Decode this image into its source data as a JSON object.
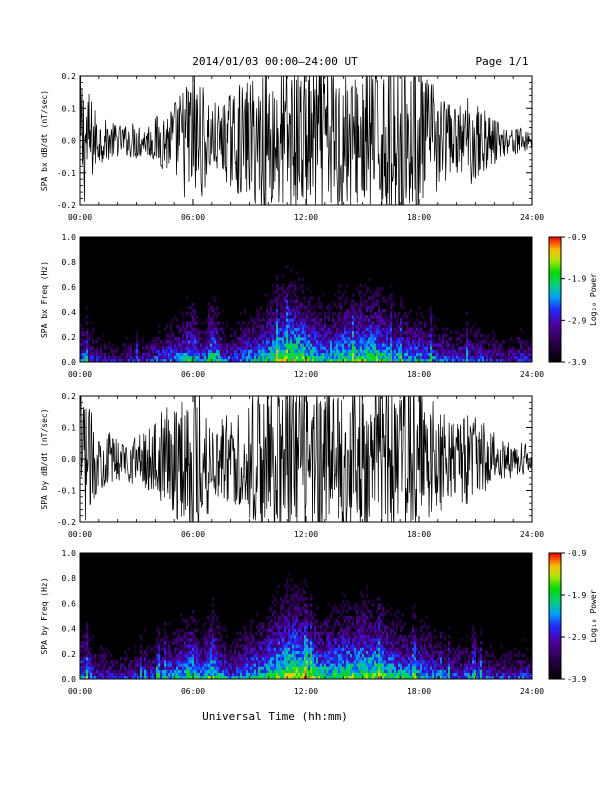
{
  "header": {
    "title": "2014/01/03  00:00–24:00 UT",
    "page": "Page 1/1"
  },
  "footer": {
    "xlabel": "Universal Time (hh:mm)"
  },
  "chart_data": [
    {
      "type": "line",
      "name": "bx-waveform",
      "ylabel": "SPA bx dB/dt (nT/sec)",
      "xlim": [
        0,
        24
      ],
      "ylim": [
        -0.2,
        0.2
      ],
      "xticks": [
        "00:00",
        "06:00",
        "12:00",
        "18:00",
        "24:00"
      ],
      "yticks": [
        "-0.2",
        "-0.1",
        "0.0",
        "0.1",
        "0.2"
      ],
      "x": [
        0,
        0.5,
        1,
        1.5,
        2,
        2.5,
        3,
        3.5,
        4,
        4.5,
        5,
        5.5,
        6,
        6.5,
        7,
        7.5,
        8,
        8.5,
        9,
        9.5,
        10,
        10.5,
        11,
        11.5,
        12,
        12.5,
        13,
        13.5,
        14,
        14.5,
        15,
        15.5,
        16,
        16.5,
        17,
        17.5,
        18,
        18.5,
        19,
        19.5,
        20,
        20.5,
        21,
        21.5,
        22,
        22.5,
        23,
        23.5,
        24
      ],
      "envelope": [
        0.2,
        0.12,
        0.06,
        0.05,
        0.04,
        0.04,
        0.05,
        0.04,
        0.06,
        0.08,
        0.1,
        0.14,
        0.2,
        0.14,
        0.1,
        0.09,
        0.12,
        0.14,
        0.15,
        0.18,
        0.2,
        0.2,
        0.2,
        0.2,
        0.2,
        0.2,
        0.2,
        0.2,
        0.2,
        0.16,
        0.2,
        0.2,
        0.2,
        0.2,
        0.2,
        0.2,
        0.18,
        0.16,
        0.13,
        0.1,
        0.08,
        0.12,
        0.1,
        0.08,
        0.06,
        0.04,
        0.04,
        0.03,
        0.03
      ]
    },
    {
      "type": "heatmap",
      "name": "bx-spectrogram",
      "ylabel": "SPA bx Freq (Hz)",
      "xlim": [
        0,
        24
      ],
      "ylim": [
        0,
        1.0
      ],
      "xticks": [
        "00:00",
        "06:00",
        "12:00",
        "18:00",
        "24:00"
      ],
      "yticks": [
        "0.0",
        "0.2",
        "0.4",
        "0.6",
        "0.8",
        "1.0"
      ],
      "colorbar": {
        "label": "Log₁₀ Power",
        "range": [
          -3.9,
          -0.9
        ],
        "ticks": [
          "-0.9",
          "-1.9",
          "-2.9",
          "-3.9"
        ]
      },
      "x": [
        0,
        0.5,
        1,
        1.5,
        2,
        2.5,
        3,
        3.5,
        4,
        4.5,
        5,
        5.5,
        6,
        6.5,
        7,
        7.5,
        8,
        8.5,
        9,
        9.5,
        10,
        10.5,
        11,
        11.5,
        12,
        12.5,
        13,
        13.5,
        14,
        14.5,
        15,
        15.5,
        16,
        16.5,
        17,
        17.5,
        18,
        18.5,
        19,
        19.5,
        20,
        20.5,
        21,
        21.5,
        22,
        22.5,
        23,
        23.5,
        24
      ],
      "band_power": [
        -2.0,
        -2.3,
        -2.6,
        -2.7,
        -2.8,
        -2.7,
        -2.6,
        -2.6,
        -2.3,
        -2.2,
        -2.1,
        -1.9,
        -1.6,
        -2.2,
        -1.5,
        -2.0,
        -2.3,
        -2.1,
        -1.9,
        -1.8,
        -1.6,
        -1.4,
        -1.2,
        -1.2,
        -1.4,
        -1.6,
        -1.7,
        -1.6,
        -1.5,
        -1.5,
        -1.4,
        -1.4,
        -1.5,
        -1.7,
        -1.8,
        -1.9,
        -1.9,
        -2.0,
        -2.2,
        -2.3,
        -2.4,
        -2.3,
        -2.3,
        -2.4,
        -2.5,
        -2.6,
        -2.6,
        -2.4,
        -2.5
      ]
    },
    {
      "type": "line",
      "name": "by-waveform",
      "ylabel": "SPA by dB/dt (nT/sec)",
      "xlim": [
        0,
        24
      ],
      "ylim": [
        -0.2,
        0.2
      ],
      "xticks": [
        "00:00",
        "06:00",
        "12:00",
        "18:00",
        "24:00"
      ],
      "yticks": [
        "-0.2",
        "-0.1",
        "0.0",
        "0.1",
        "0.2"
      ],
      "x": [
        0,
        0.5,
        1,
        1.5,
        2,
        2.5,
        3,
        3.5,
        4,
        4.5,
        5,
        5.5,
        6,
        6.5,
        7,
        7.5,
        8,
        8.5,
        9,
        9.5,
        10,
        10.5,
        11,
        11.5,
        12,
        12.5,
        13,
        13.5,
        14,
        14.5,
        15,
        15.5,
        16,
        16.5,
        17,
        17.5,
        18,
        18.5,
        19,
        19.5,
        20,
        20.5,
        21,
        21.5,
        22,
        22.5,
        23,
        23.5,
        24
      ],
      "envelope": [
        0.2,
        0.13,
        0.08,
        0.07,
        0.06,
        0.06,
        0.07,
        0.08,
        0.1,
        0.13,
        0.15,
        0.19,
        0.2,
        0.2,
        0.12,
        0.11,
        0.12,
        0.14,
        0.16,
        0.18,
        0.2,
        0.2,
        0.2,
        0.2,
        0.2,
        0.2,
        0.2,
        0.2,
        0.2,
        0.2,
        0.2,
        0.2,
        0.2,
        0.2,
        0.2,
        0.2,
        0.18,
        0.16,
        0.14,
        0.12,
        0.1,
        0.12,
        0.11,
        0.09,
        0.07,
        0.05,
        0.05,
        0.04,
        0.04
      ]
    },
    {
      "type": "heatmap",
      "name": "by-spectrogram",
      "ylabel": "SPA by Freq (Hz)",
      "xlim": [
        0,
        24
      ],
      "ylim": [
        0,
        1.0
      ],
      "xticks": [
        "00:00",
        "06:00",
        "12:00",
        "18:00",
        "24:00"
      ],
      "yticks": [
        "0.0",
        "0.2",
        "0.4",
        "0.6",
        "0.8",
        "1.0"
      ],
      "colorbar": {
        "label": "Log₁₀ Power",
        "range": [
          -3.9,
          -0.9
        ],
        "ticks": [
          "-0.9",
          "-1.9",
          "-2.9",
          "-3.9"
        ]
      },
      "x": [
        0,
        0.5,
        1,
        1.5,
        2,
        2.5,
        3,
        3.5,
        4,
        4.5,
        5,
        5.5,
        6,
        6.5,
        7,
        7.5,
        8,
        8.5,
        9,
        9.5,
        10,
        10.5,
        11,
        11.5,
        12,
        12.5,
        13,
        13.5,
        14,
        14.5,
        15,
        15.5,
        16,
        16.5,
        17,
        17.5,
        18,
        18.5,
        19,
        19.5,
        20,
        20.5,
        21,
        21.5,
        22,
        22.5,
        23,
        23.5,
        24
      ],
      "band_power": [
        -1.8,
        -2.1,
        -2.4,
        -2.5,
        -2.6,
        -2.5,
        -2.4,
        -2.4,
        -2.2,
        -2.0,
        -1.9,
        -1.7,
        -1.5,
        -2.0,
        -1.4,
        -1.9,
        -2.2,
        -2.0,
        -1.8,
        -1.7,
        -1.5,
        -1.3,
        -1.1,
        -1.1,
        -1.3,
        -1.5,
        -1.6,
        -1.5,
        -1.4,
        -1.4,
        -1.3,
        -1.3,
        -1.4,
        -1.6,
        -1.7,
        -1.8,
        -1.8,
        -1.9,
        -2.1,
        -2.2,
        -2.3,
        -2.2,
        -2.2,
        -2.3,
        -2.4,
        -2.5,
        -2.5,
        -2.3,
        -2.4
      ]
    }
  ]
}
